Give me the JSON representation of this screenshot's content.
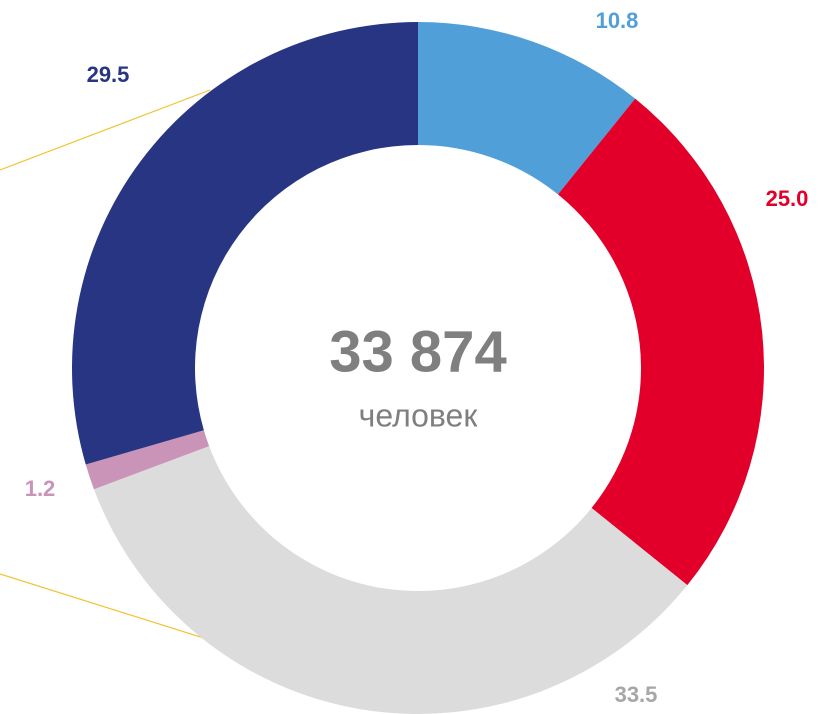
{
  "chart_data": {
    "type": "donut",
    "center_value": "33 874",
    "center_label": "человек",
    "values": [
      10.8,
      25.0,
      33.5,
      1.2,
      29.5
    ],
    "value_labels": [
      "10.8",
      "25.0",
      "33.5",
      "1.2",
      "29.5"
    ],
    "colors": [
      "#519fd8",
      "#e2002a",
      "#dcdcdc",
      "#c994b8",
      "#283583"
    ],
    "label_colors": [
      "#519fd8",
      "#e2002a",
      "#a6a6a6",
      "#c994b8",
      "#283583"
    ]
  }
}
